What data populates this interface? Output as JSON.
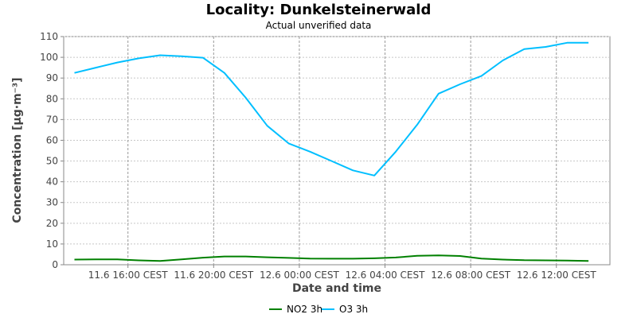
{
  "chart_data": {
    "type": "line",
    "title": "Locality: Dunkelsteinerwald",
    "subtitle": "Actual unverified data",
    "xlabel": "Date and time",
    "ylabel": "Concentration [µg·m⁻³]",
    "ylim": [
      0,
      110
    ],
    "yticks": [
      "0",
      "10",
      "20",
      "30",
      "40",
      "50",
      "60",
      "70",
      "80",
      "90",
      "100",
      "110"
    ],
    "xlim": [
      "2024-06-11T13:00",
      "2024-06-12T14:30"
    ],
    "xticks": [
      {
        "t": "2024-06-11T16:00",
        "label": "11.6 16:00 CEST"
      },
      {
        "t": "2024-06-11T20:00",
        "label": "11.6 20:00 CEST"
      },
      {
        "t": "2024-06-12T00:00",
        "label": "12.6 00:00 CEST"
      },
      {
        "t": "2024-06-12T04:00",
        "label": "12.6 04:00 CEST"
      },
      {
        "t": "2024-06-12T08:00",
        "label": "12.6 08:00 CEST"
      },
      {
        "t": "2024-06-12T12:00",
        "label": "12.6 12:00 CEST"
      }
    ],
    "x": [
      "2024-06-11T13:30",
      "2024-06-11T14:30",
      "2024-06-11T15:30",
      "2024-06-11T16:30",
      "2024-06-11T17:30",
      "2024-06-11T18:30",
      "2024-06-11T19:30",
      "2024-06-11T20:30",
      "2024-06-11T21:30",
      "2024-06-11T22:30",
      "2024-06-11T23:30",
      "2024-06-12T00:30",
      "2024-06-12T01:30",
      "2024-06-12T02:30",
      "2024-06-12T03:30",
      "2024-06-12T04:30",
      "2024-06-12T05:30",
      "2024-06-12T06:30",
      "2024-06-12T07:30",
      "2024-06-12T08:30",
      "2024-06-12T09:30",
      "2024-06-12T10:30",
      "2024-06-12T11:30",
      "2024-06-12T12:30",
      "2024-06-12T13:30"
    ],
    "series": [
      {
        "name": "NO2 3h",
        "color": "#008000",
        "values": [
          2.5,
          2.6,
          2.6,
          2.1,
          1.8,
          2.6,
          3.4,
          4.0,
          4.0,
          3.6,
          3.3,
          3.0,
          2.9,
          2.9,
          3.1,
          3.5,
          4.3,
          4.5,
          4.2,
          3.0,
          2.5,
          2.2,
          2.1,
          2.0,
          1.8
        ]
      },
      {
        "name": "O3 3h",
        "color": "#00bfff",
        "values": [
          92.5,
          95.0,
          97.5,
          99.5,
          101.0,
          100.5,
          99.8,
          92.5,
          80.5,
          67.0,
          58.5,
          54.5,
          50.0,
          45.5,
          43.0,
          54.5,
          67.5,
          82.5,
          87.0,
          91.0,
          98.5,
          104.0,
          105.0,
          107.0,
          107.0
        ]
      }
    ],
    "grid": true,
    "legend": "bottom-center"
  }
}
